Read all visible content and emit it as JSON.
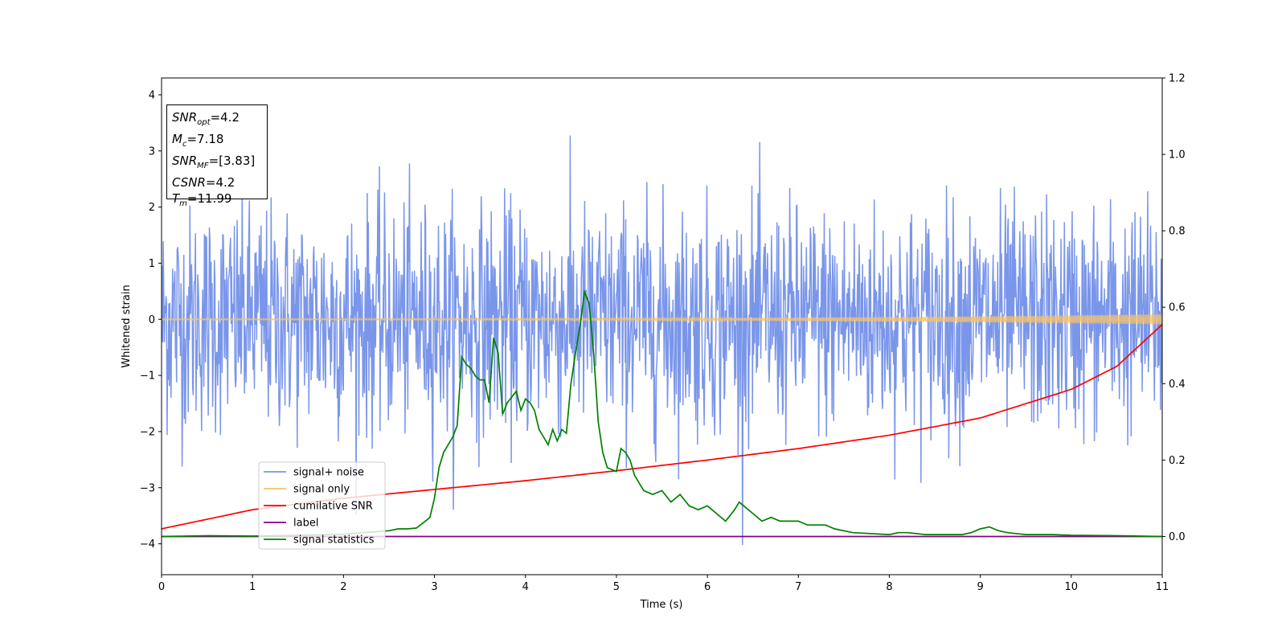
{
  "chart_data": {
    "type": "line",
    "xlabel": "Time (s)",
    "ylabel": "Whitened strain",
    "xlim": [
      0,
      11
    ],
    "ylim_left": [
      -4.55,
      4.3
    ],
    "ylim_right": [
      -0.1,
      1.2
    ],
    "x_ticks": [
      "0",
      "1",
      "2",
      "3",
      "4",
      "5",
      "6",
      "7",
      "8",
      "9",
      "10",
      "11"
    ],
    "y_ticks_left": [
      "4",
      "3",
      "2",
      "1",
      "0",
      "−1",
      "−2",
      "−3",
      "−4"
    ],
    "y_ticks_right": [
      "1.2",
      "1.0",
      "0.8",
      "0.6",
      "0.4",
      "0.2",
      "0.0"
    ],
    "legend_position": "lower-left",
    "legend": [
      {
        "label": "signal+ noise",
        "color": "#4169e1"
      },
      {
        "label": "signal only",
        "color": "#f5c36b"
      },
      {
        "label": "cumilative SNR",
        "color": "#ff0000"
      },
      {
        "label": "label",
        "color": "#800080"
      },
      {
        "label": "signal statistics",
        "color": "#008000"
      }
    ],
    "series": [
      {
        "name": "signal+ noise",
        "axis": "left",
        "color": "#4169e1",
        "kind": "noise",
        "std": 1.0,
        "samples": 1800
      },
      {
        "name": "signal only",
        "axis": "left",
        "color": "#f5c36b",
        "kind": "chirp",
        "start_amp": 0.01,
        "end_amp": 0.09
      },
      {
        "name": "cumilative SNR",
        "axis": "right",
        "x": [
          0,
          1,
          2,
          3,
          4,
          5,
          6,
          7,
          8,
          9,
          10,
          10.5,
          11
        ],
        "y": [
          0.02,
          0.07,
          0.1,
          0.123,
          0.146,
          0.172,
          0.2,
          0.23,
          0.265,
          0.31,
          0.385,
          0.445,
          0.555
        ]
      },
      {
        "name": "label",
        "axis": "right",
        "x": [
          0,
          11
        ],
        "y": [
          0.0,
          0.0
        ]
      },
      {
        "name": "signal statistics",
        "axis": "right",
        "x": [
          0,
          0.5,
          1,
          1.5,
          2,
          2.5,
          2.6,
          2.7,
          2.8,
          2.9,
          2.95,
          3.0,
          3.05,
          3.1,
          3.2,
          3.25,
          3.3,
          3.35,
          3.4,
          3.45,
          3.5,
          3.55,
          3.6,
          3.65,
          3.7,
          3.75,
          3.8,
          3.9,
          3.95,
          4.0,
          4.05,
          4.1,
          4.15,
          4.2,
          4.25,
          4.3,
          4.35,
          4.4,
          4.45,
          4.5,
          4.55,
          4.6,
          4.65,
          4.7,
          4.75,
          4.8,
          4.85,
          4.9,
          5.0,
          5.05,
          5.1,
          5.15,
          5.2,
          5.3,
          5.4,
          5.5,
          5.6,
          5.7,
          5.8,
          5.9,
          6.0,
          6.1,
          6.2,
          6.3,
          6.35,
          6.5,
          6.6,
          6.7,
          6.8,
          6.9,
          7.0,
          7.1,
          7.2,
          7.3,
          7.4,
          7.6,
          8.0,
          8.1,
          8.2,
          8.4,
          8.6,
          8.8,
          8.9,
          9.0,
          9.1,
          9.2,
          9.3,
          9.5,
          9.8,
          10.0,
          10.5,
          11.0
        ],
        "y": [
          0.0,
          0.002,
          0.001,
          0.003,
          0.006,
          0.015,
          0.02,
          0.02,
          0.022,
          0.04,
          0.05,
          0.1,
          0.18,
          0.22,
          0.26,
          0.29,
          0.47,
          0.45,
          0.44,
          0.42,
          0.41,
          0.41,
          0.35,
          0.52,
          0.48,
          0.32,
          0.35,
          0.38,
          0.33,
          0.36,
          0.35,
          0.33,
          0.28,
          0.26,
          0.24,
          0.28,
          0.25,
          0.28,
          0.27,
          0.4,
          0.48,
          0.55,
          0.64,
          0.61,
          0.48,
          0.3,
          0.22,
          0.18,
          0.17,
          0.23,
          0.22,
          0.2,
          0.16,
          0.12,
          0.11,
          0.12,
          0.09,
          0.11,
          0.08,
          0.07,
          0.08,
          0.06,
          0.04,
          0.07,
          0.09,
          0.06,
          0.04,
          0.05,
          0.04,
          0.04,
          0.04,
          0.03,
          0.03,
          0.03,
          0.02,
          0.01,
          0.005,
          0.01,
          0.01,
          0.005,
          0.005,
          0.005,
          0.01,
          0.02,
          0.025,
          0.015,
          0.01,
          0.005,
          0.005,
          0.003,
          0.002,
          0.0
        ]
      }
    ]
  },
  "info_box": {
    "snr_opt_label": "SNR",
    "snr_opt_sub": "opt",
    "snr_opt_value": "=4.2",
    "mc_label": "M",
    "mc_sub": "c",
    "mc_value": "=7.18",
    "snr_mf_label": "SNR",
    "snr_mf_sub": "MF",
    "snr_mf_value": "=[3.83]",
    "csnr_label": "CSNR",
    "csnr_value": "=4.2",
    "tm_label": "T",
    "tm_sub": "m",
    "tm_value": "=11.99"
  }
}
